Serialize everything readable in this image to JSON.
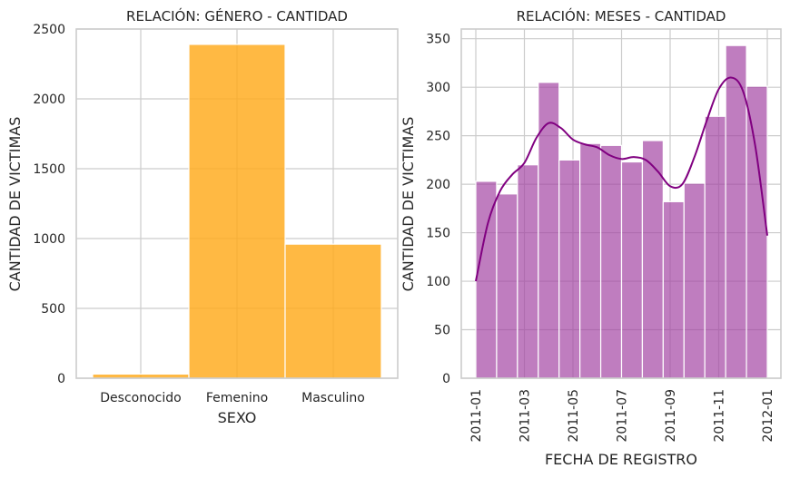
{
  "chart_data": [
    {
      "type": "bar",
      "title": "RELACIÓN: GÉNERO - CANTIDAD",
      "xlabel": "SEXO",
      "ylabel": "CANTIDAD DE VICTIMAS",
      "categories": [
        "Desconocido",
        "Femenino",
        "Masculino"
      ],
      "values": [
        30,
        2390,
        960
      ],
      "ylim": [
        0,
        2500
      ],
      "yticks": [
        0,
        500,
        1000,
        1500,
        2000,
        2500
      ],
      "grid": true,
      "color": "#ffaa1a"
    },
    {
      "type": "bar",
      "title": "RELACIÓN: MESES - CANTIDAD",
      "xlabel": "FECHA DE REGISTRO",
      "ylabel": "CANTIDAD DE VICTIMAS",
      "bins": 14,
      "values": [
        203,
        190,
        220,
        305,
        225,
        242,
        240,
        223,
        245,
        182,
        201,
        270,
        343,
        301
      ],
      "kde": [
        [
          0,
          100
        ],
        [
          0.5,
          160
        ],
        [
          1,
          193
        ],
        [
          1.5,
          210
        ],
        [
          2,
          222
        ],
        [
          2.5,
          248
        ],
        [
          3,
          263
        ],
        [
          3.5,
          258
        ],
        [
          4,
          246
        ],
        [
          4.5,
          241
        ],
        [
          5,
          238
        ],
        [
          5.5,
          230
        ],
        [
          6,
          226
        ],
        [
          6.5,
          228
        ],
        [
          7,
          225
        ],
        [
          7.5,
          213
        ],
        [
          8,
          198
        ],
        [
          8.5,
          200
        ],
        [
          9,
          228
        ],
        [
          9.5,
          265
        ],
        [
          10,
          298
        ],
        [
          10.5,
          310
        ],
        [
          11,
          296
        ],
        [
          11.5,
          240
        ],
        [
          12,
          147
        ]
      ],
      "xticks": [
        "2011-01",
        "2011-03",
        "2011-05",
        "2011-07",
        "2011-09",
        "2011-11",
        "2012-01"
      ],
      "ylim": [
        0,
        360
      ],
      "yticks": [
        0,
        50,
        100,
        150,
        200,
        250,
        300,
        350
      ],
      "grid": true,
      "color": "#a040a0",
      "line_color": "#800080"
    }
  ]
}
